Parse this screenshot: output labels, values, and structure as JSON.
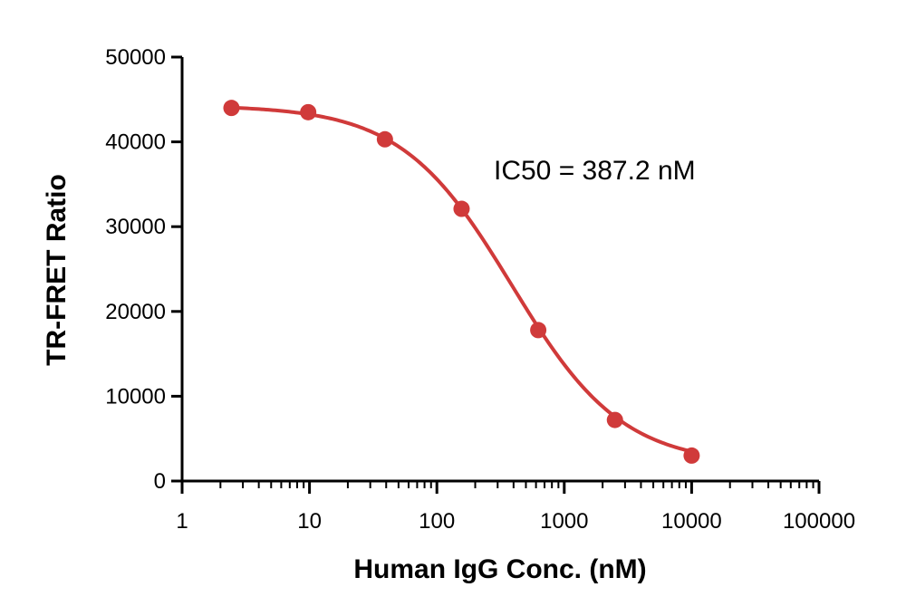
{
  "chart_data": {
    "type": "scatter",
    "title": "",
    "xlabel": "Human IgG Conc. (nM)",
    "ylabel": "TR-FRET Ratio",
    "x_scale": "log",
    "xlim": [
      1,
      100000
    ],
    "ylim": [
      0,
      50000
    ],
    "x_ticks": [
      1,
      10,
      100,
      1000,
      10000,
      100000
    ],
    "x_tick_labels": [
      "1",
      "10",
      "100",
      "1000",
      "10000",
      "100000"
    ],
    "y_ticks": [
      0,
      10000,
      20000,
      30000,
      40000,
      50000
    ],
    "y_tick_labels": [
      "0",
      "10000",
      "20000",
      "30000",
      "40000",
      "50000"
    ],
    "grid": false,
    "legend": "none",
    "color": "#d03a3a",
    "series": [
      {
        "x": [
          2.44,
          9.77,
          39.1,
          156.3,
          625,
          2500,
          10000
        ],
        "y": [
          44000,
          43500,
          40300,
          32100,
          17800,
          7200,
          3000
        ]
      }
    ],
    "fit": {
      "model": "4PL",
      "top": 44300,
      "bottom": 1900,
      "ic50": 387.2,
      "hill": 1.0
    },
    "annotations": [
      {
        "text": "IC50 = 387.2 nM"
      }
    ]
  }
}
